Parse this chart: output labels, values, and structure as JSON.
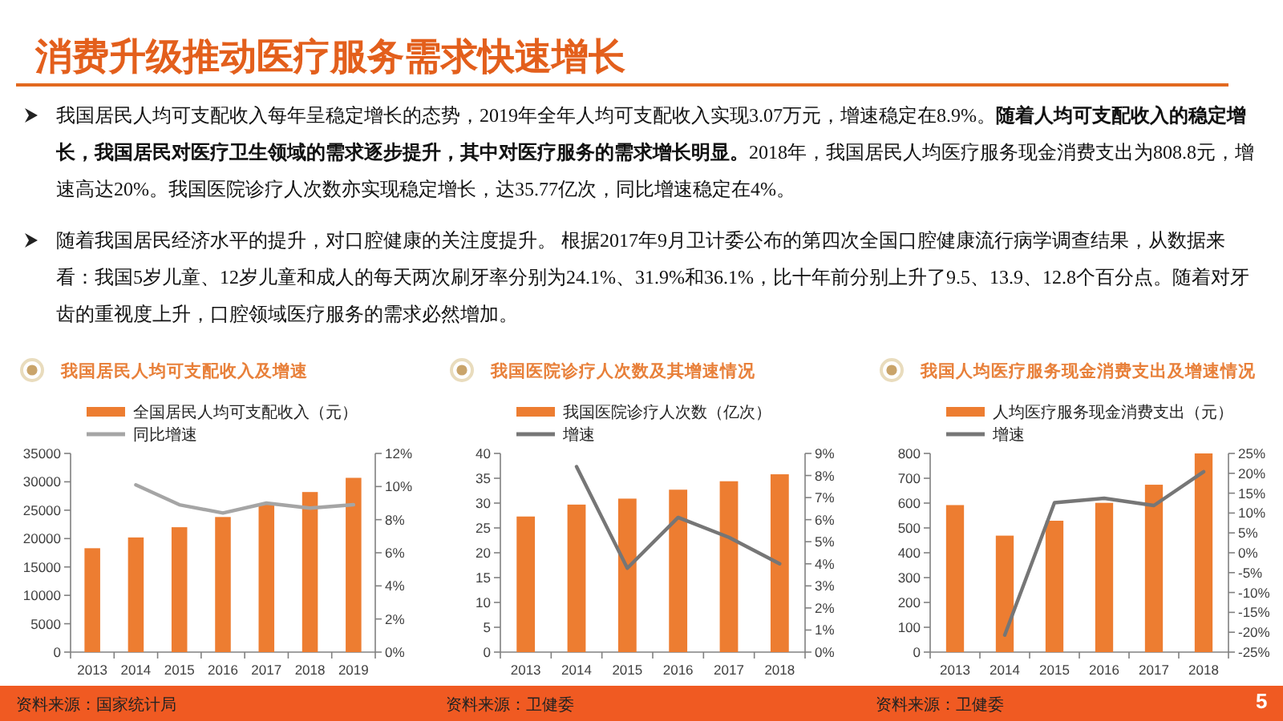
{
  "chart_data": [
    {
      "type": "other",
      "title": "消费升级推动医疗服务需求快速增长",
      "annotations": [
        "我国居民人均可支配收入每年呈稳定增长的态势，2019年全年人均可支配收入实现3.07万元，增速稳定在8.9%。**随着人均可支配收入的稳定增长，我国居民对医疗卫生领域的需求逐步提升，其中对医疗服务的需求增长明显。**2018年，我国居民人均医疗服务现金消费支出为808.8元，增速高达20%。我国医院诊疗人次数亦实现稳定增长，达35.77亿次，同比增速稳定在4%。",
        "随着我国居民经济水平的提升，对口腔健康的关注度提升。 根据2017年9月卫计委公布的第四次全国口腔健康流行病学调查结果，从数据来看：我国5岁儿童、12岁儿童和成人的每天两次刷牙率分别为24.1%、31.9%和36.1%，比十年前分别上升了9.5、13.9、12.8个百分点。随着对牙齿的重视度上升，口腔领域医疗服务的需求必然增加。",
        "5"
      ]
    },
    {
      "type": "bar",
      "title": "我国居民人均可支配收入及增速",
      "categories": [
        "2013",
        "2014",
        "2015",
        "2016",
        "2017",
        "2018",
        "2019"
      ],
      "series": [
        {
          "name": "全国居民人均可支配收入（元）",
          "color": "#ed7d31",
          "values": [
            18300,
            20200,
            22000,
            23800,
            26000,
            28200,
            30700
          ]
        },
        {
          "name": "同比增速",
          "type": "line",
          "axis": "y2",
          "color": "#a5a5a5",
          "values": [
            null,
            10.1,
            8.9,
            8.4,
            9.0,
            8.7,
            8.9
          ]
        }
      ],
      "ylim": [
        0,
        35000
      ],
      "yticks": [
        0,
        5000,
        10000,
        15000,
        20000,
        25000,
        30000,
        35000
      ],
      "y2lim": [
        0,
        12
      ],
      "y2ticks": [
        {
          "value": 0,
          "label": "0%"
        },
        {
          "value": 2,
          "label": "2%"
        },
        {
          "value": 4,
          "label": "4%"
        },
        {
          "value": 6,
          "label": "6%"
        },
        {
          "value": 8,
          "label": "8%"
        },
        {
          "value": 10,
          "label": "10%"
        },
        {
          "value": 12,
          "label": "12%"
        }
      ],
      "legend": "top left",
      "annotations": [
        "资料来源：国家统计局"
      ]
    },
    {
      "type": "bar",
      "title": "我国医院诊疗人次数及其增速情况",
      "categories": [
        "2013",
        "2014",
        "2015",
        "2016",
        "2017",
        "2018"
      ],
      "series": [
        {
          "name": "我国医院诊疗人次数（亿次）",
          "color": "#ed7d31",
          "values": [
            27.3,
            29.7,
            30.9,
            32.7,
            34.4,
            35.8
          ]
        },
        {
          "name": "增速",
          "type": "line",
          "axis": "y2",
          "color": "#767676",
          "values": [
            null,
            8.4,
            3.8,
            6.1,
            5.2,
            4.0
          ]
        }
      ],
      "ylim": [
        0,
        40
      ],
      "yticks": [
        0,
        5,
        10,
        15,
        20,
        25,
        30,
        35,
        40
      ],
      "y2lim": [
        0,
        9
      ],
      "y2ticks": [
        {
          "value": 0,
          "label": "0%"
        },
        {
          "value": 1,
          "label": "1%"
        },
        {
          "value": 2,
          "label": "2%"
        },
        {
          "value": 3,
          "label": "3%"
        },
        {
          "value": 4,
          "label": "4%"
        },
        {
          "value": 5,
          "label": "5%"
        },
        {
          "value": 6,
          "label": "6%"
        },
        {
          "value": 7,
          "label": "7%"
        },
        {
          "value": 8,
          "label": "8%"
        },
        {
          "value": 9,
          "label": "9%"
        }
      ],
      "legend": "top left",
      "annotations": [
        "资料来源：卫健委"
      ]
    },
    {
      "type": "bar",
      "title": "我国人均医疗服务现金消费支出及增速情况",
      "categories": [
        "2013",
        "2014",
        "2015",
        "2016",
        "2017",
        "2018"
      ],
      "series": [
        {
          "name": "人均医疗服务现金消费支出（元）",
          "color": "#ed7d31",
          "values": [
            592,
            469,
            529,
            601,
            674,
            800
          ]
        },
        {
          "name": "增速",
          "type": "line",
          "axis": "y2",
          "color": "#767676",
          "values": [
            null,
            -20.7,
            12.6,
            13.7,
            11.9,
            20.4
          ]
        }
      ],
      "ylim": [
        0,
        800
      ],
      "yticks": [
        0,
        100,
        200,
        300,
        400,
        500,
        600,
        700,
        800
      ],
      "y2lim": [
        -25,
        25
      ],
      "y2ticks": [
        {
          "value": -25,
          "label": "-25%"
        },
        {
          "value": -20,
          "label": "-20%"
        },
        {
          "value": -15,
          "label": "-15%"
        },
        {
          "value": -10,
          "label": "-10%"
        },
        {
          "value": -5,
          "label": "-5%"
        },
        {
          "value": 0,
          "label": "0%"
        },
        {
          "value": 5,
          "label": "5%"
        },
        {
          "value": 10,
          "label": "10%"
        },
        {
          "value": 15,
          "label": "15%"
        },
        {
          "value": 20,
          "label": "20%"
        },
        {
          "value": 25,
          "label": "25%"
        }
      ],
      "legend": "top left",
      "annotations": [
        "资料来源：卫健委"
      ]
    }
  ]
}
